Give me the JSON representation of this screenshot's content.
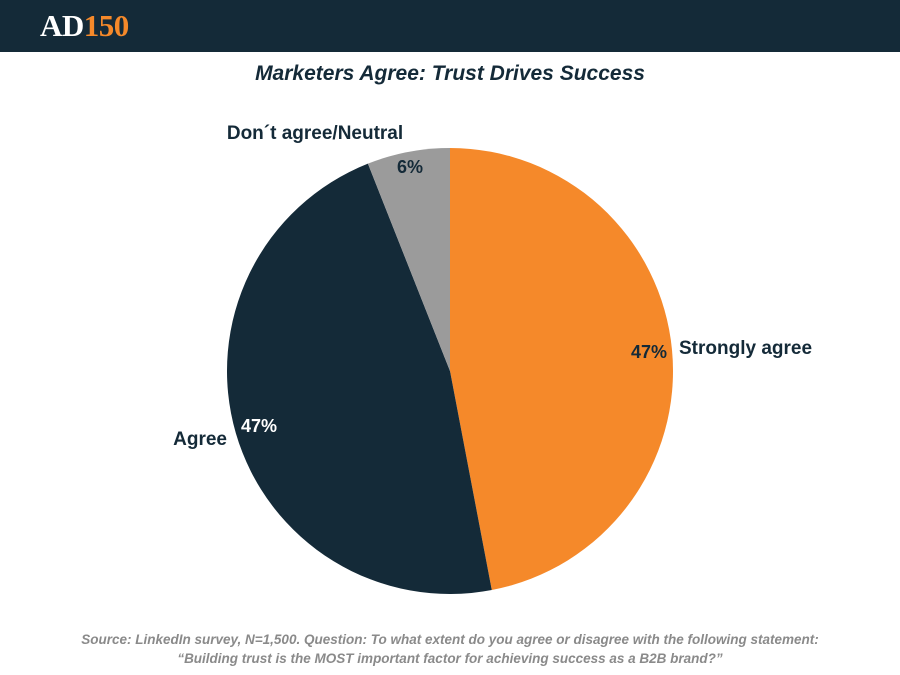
{
  "header": {
    "logo_prefix": "AD",
    "logo_number": "150"
  },
  "colors": {
    "header_bg": "#142a38",
    "accent": "#f5892a",
    "agree": "#142a38",
    "neutral": "#9b9b9b"
  },
  "chart_data": {
    "type": "pie",
    "title": "Marketers Agree: Trust Drives Success",
    "slices": [
      {
        "label": "Strongly agree",
        "value": 47,
        "display": "47%",
        "color": "#f5892a",
        "value_color": "#142a38"
      },
      {
        "label": "Agree",
        "value": 47,
        "display": "47%",
        "color": "#142a38",
        "value_color": "#ffffff"
      },
      {
        "label": "Don´t agree/Neutral",
        "value": 6,
        "display": "6%",
        "color": "#9b9b9b",
        "value_color": "#142a38"
      }
    ],
    "start": "12 o'clock",
    "direction": "clockwise"
  },
  "footer": {
    "source_line1": "Source: LinkedIn survey, N=1,500. Question: To what extent do you agree or disagree with the following statement:",
    "source_line2": "“Building trust is the MOST important factor for achieving success as a B2B brand?”"
  }
}
